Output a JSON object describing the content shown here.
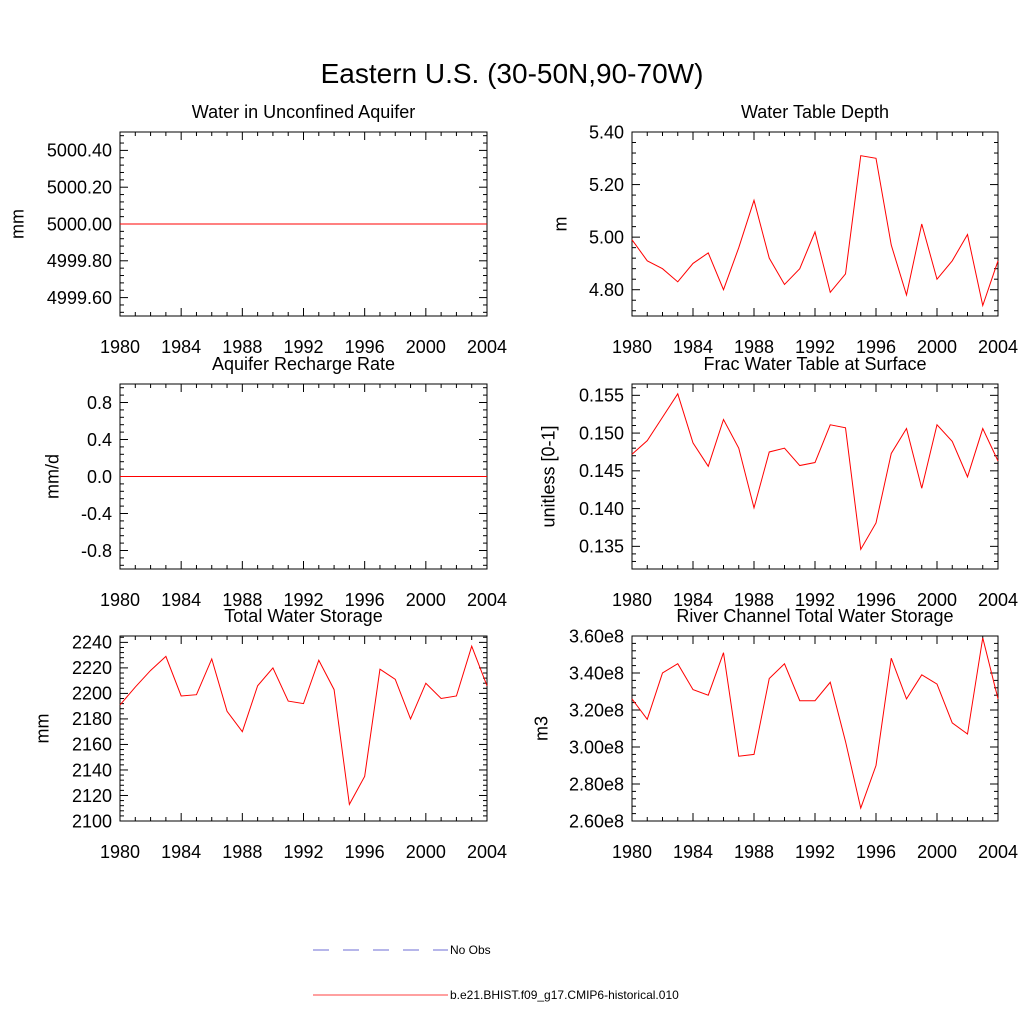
{
  "title": "Eastern U.S. (30-50N,90-70W)",
  "colors": {
    "series": "#ff0000",
    "obs": "#3c3cc8",
    "axis": "#000000"
  },
  "chart_data": [
    {
      "type": "line",
      "title": "Water in Unconfined Aquifer",
      "ylabel": "mm",
      "xlim": [
        1980,
        2004
      ],
      "ylim": [
        4999.5,
        5000.5
      ],
      "xticks": [
        "1980",
        "1984",
        "1988",
        "1992",
        "1996",
        "2000",
        "2004"
      ],
      "yticks": [
        "4999.60",
        "4999.80",
        "5000.00",
        "5000.20",
        "5000.40"
      ],
      "yticks_values": [
        4999.6,
        4999.8,
        5000.0,
        5000.2,
        5000.4
      ],
      "x": [
        1980,
        1981,
        1982,
        1983,
        1984,
        1985,
        1986,
        1987,
        1988,
        1989,
        1990,
        1991,
        1992,
        1993,
        1994,
        1995,
        1996,
        1997,
        1998,
        1999,
        2000,
        2001,
        2002,
        2003,
        2004
      ],
      "series": [
        {
          "name": "b.e21.BHIST.f09_g17.CMIP6-historical.010",
          "values": [
            5000,
            5000,
            5000,
            5000,
            5000,
            5000,
            5000,
            5000,
            5000,
            5000,
            5000,
            5000,
            5000,
            5000,
            5000,
            5000,
            5000,
            5000,
            5000,
            5000,
            5000,
            5000,
            5000,
            5000,
            5000
          ]
        }
      ]
    },
    {
      "type": "line",
      "title": "Water Table Depth",
      "ylabel": "m",
      "xlim": [
        1980,
        2004
      ],
      "ylim": [
        4.7,
        5.4
      ],
      "xticks": [
        "1980",
        "1984",
        "1988",
        "1992",
        "1996",
        "2000",
        "2004"
      ],
      "yticks": [
        "4.80",
        "5.00",
        "5.20",
        "5.40"
      ],
      "yticks_values": [
        4.8,
        5.0,
        5.2,
        5.4
      ],
      "x": [
        1980,
        1981,
        1982,
        1983,
        1984,
        1985,
        1986,
        1987,
        1988,
        1989,
        1990,
        1991,
        1992,
        1993,
        1994,
        1995,
        1996,
        1997,
        1998,
        1999,
        2000,
        2001,
        2002,
        2003,
        2004
      ],
      "series": [
        {
          "name": "b.e21.BHIST.f09_g17.CMIP6-historical.010",
          "values": [
            4.99,
            4.91,
            4.88,
            4.83,
            4.9,
            4.94,
            4.8,
            4.96,
            5.14,
            4.92,
            4.82,
            4.88,
            5.02,
            4.79,
            4.86,
            5.31,
            5.3,
            4.97,
            4.78,
            5.05,
            4.84,
            4.91,
            5.01,
            4.74,
            4.91
          ]
        }
      ]
    },
    {
      "type": "line",
      "title": "Aquifer Recharge Rate",
      "ylabel": "mm/d",
      "xlim": [
        1980,
        2004
      ],
      "ylim": [
        -1.0,
        1.0
      ],
      "xticks": [
        "1980",
        "1984",
        "1988",
        "1992",
        "1996",
        "2000",
        "2004"
      ],
      "yticks": [
        "-0.8",
        "-0.4",
        "0.0",
        "0.4",
        "0.8"
      ],
      "yticks_values": [
        -0.8,
        -0.4,
        0.0,
        0.4,
        0.8
      ],
      "x": [
        1980,
        1981,
        1982,
        1983,
        1984,
        1985,
        1986,
        1987,
        1988,
        1989,
        1990,
        1991,
        1992,
        1993,
        1994,
        1995,
        1996,
        1997,
        1998,
        1999,
        2000,
        2001,
        2002,
        2003,
        2004
      ],
      "series": [
        {
          "name": "b.e21.BHIST.f09_g17.CMIP6-historical.010",
          "values": [
            0,
            0,
            0,
            0,
            0,
            0,
            0,
            0,
            0,
            0,
            0,
            0,
            0,
            0,
            0,
            0,
            0,
            0,
            0,
            0,
            0,
            0,
            0,
            0,
            0
          ]
        }
      ]
    },
    {
      "type": "line",
      "title": "Frac Water Table at Surface",
      "ylabel": "unitless [0-1]",
      "xlim": [
        1980,
        2004
      ],
      "ylim": [
        0.132,
        0.1565
      ],
      "xticks": [
        "1980",
        "1984",
        "1988",
        "1992",
        "1996",
        "2000",
        "2004"
      ],
      "yticks": [
        "0.135",
        "0.140",
        "0.145",
        "0.150",
        "0.155"
      ],
      "yticks_values": [
        0.135,
        0.14,
        0.145,
        0.15,
        0.155
      ],
      "x": [
        1980,
        1981,
        1982,
        1983,
        1984,
        1985,
        1986,
        1987,
        1988,
        1989,
        1990,
        1991,
        1992,
        1993,
        1994,
        1995,
        1996,
        1997,
        1998,
        1999,
        2000,
        2001,
        2002,
        2003,
        2004
      ],
      "series": [
        {
          "name": "b.e21.BHIST.f09_g17.CMIP6-historical.010",
          "values": [
            0.1472,
            0.149,
            0.1521,
            0.1552,
            0.1487,
            0.1456,
            0.1518,
            0.148,
            0.1401,
            0.1475,
            0.148,
            0.1457,
            0.1461,
            0.1511,
            0.1507,
            0.1346,
            0.1381,
            0.1473,
            0.1506,
            0.1427,
            0.1511,
            0.1489,
            0.1442,
            0.1506,
            0.1463
          ]
        }
      ]
    },
    {
      "type": "line",
      "title": "Total Water Storage",
      "ylabel": "mm",
      "xlim": [
        1980,
        2004
      ],
      "ylim": [
        2100,
        2245
      ],
      "xticks": [
        "1980",
        "1984",
        "1988",
        "1992",
        "1996",
        "2000",
        "2004"
      ],
      "yticks": [
        "2100",
        "2120",
        "2140",
        "2160",
        "2180",
        "2200",
        "2220",
        "2240"
      ],
      "yticks_values": [
        2100,
        2120,
        2140,
        2160,
        2180,
        2200,
        2220,
        2240
      ],
      "x": [
        1980,
        1981,
        1982,
        1983,
        1984,
        1985,
        1986,
        1987,
        1988,
        1989,
        1990,
        1991,
        1992,
        1993,
        1994,
        1995,
        1996,
        1997,
        1998,
        1999,
        2000,
        2001,
        2002,
        2003,
        2004
      ],
      "series": [
        {
          "name": "b.e21.BHIST.f09_g17.CMIP6-historical.010",
          "values": [
            2191,
            2205,
            2218,
            2229,
            2198,
            2199,
            2227,
            2186,
            2170,
            2206,
            2220,
            2194,
            2192,
            2226,
            2203,
            2113,
            2135,
            2219,
            2211,
            2180,
            2208,
            2196,
            2198,
            2237,
            2206
          ]
        }
      ]
    },
    {
      "type": "line",
      "title": "River Channel Total Water Storage",
      "ylabel": "m3",
      "xlim": [
        1980,
        2004
      ],
      "ylim": [
        260000000.0,
        360000000.0
      ],
      "xticks": [
        "1980",
        "1984",
        "1988",
        "1992",
        "1996",
        "2000",
        "2004"
      ],
      "yticks": [
        "2.60e8",
        "2.80e8",
        "3.00e8",
        "3.20e8",
        "3.40e8",
        "3.60e8"
      ],
      "yticks_values": [
        260000000.0,
        280000000.0,
        300000000.0,
        320000000.0,
        340000000.0,
        360000000.0
      ],
      "x": [
        1980,
        1981,
        1982,
        1983,
        1984,
        1985,
        1986,
        1987,
        1988,
        1989,
        1990,
        1991,
        1992,
        1993,
        1994,
        1995,
        1996,
        1997,
        1998,
        1999,
        2000,
        2001,
        2002,
        2003,
        2004
      ],
      "series": [
        {
          "name": "b.e21.BHIST.f09_g17.CMIP6-historical.010",
          "values": [
            326000000.0,
            315000000.0,
            340000000.0,
            345000000.0,
            331000000.0,
            328000000.0,
            351000000.0,
            295000000.0,
            296000000.0,
            337000000.0,
            345000000.0,
            325000000.0,
            325000000.0,
            335000000.0,
            303000000.0,
            267000000.0,
            290000000.0,
            348000000.0,
            326000000.0,
            339000000.0,
            334000000.0,
            313000000.0,
            307000000.0,
            359000000.0,
            326000000.0
          ]
        }
      ]
    }
  ],
  "legend": [
    {
      "label": "No Obs",
      "style": "dashed",
      "color": "#3c3cc8"
    },
    {
      "label": "b.e21.BHIST.f09_g17.CMIP6-historical.010",
      "style": "solid",
      "color": "#ff0000"
    }
  ]
}
